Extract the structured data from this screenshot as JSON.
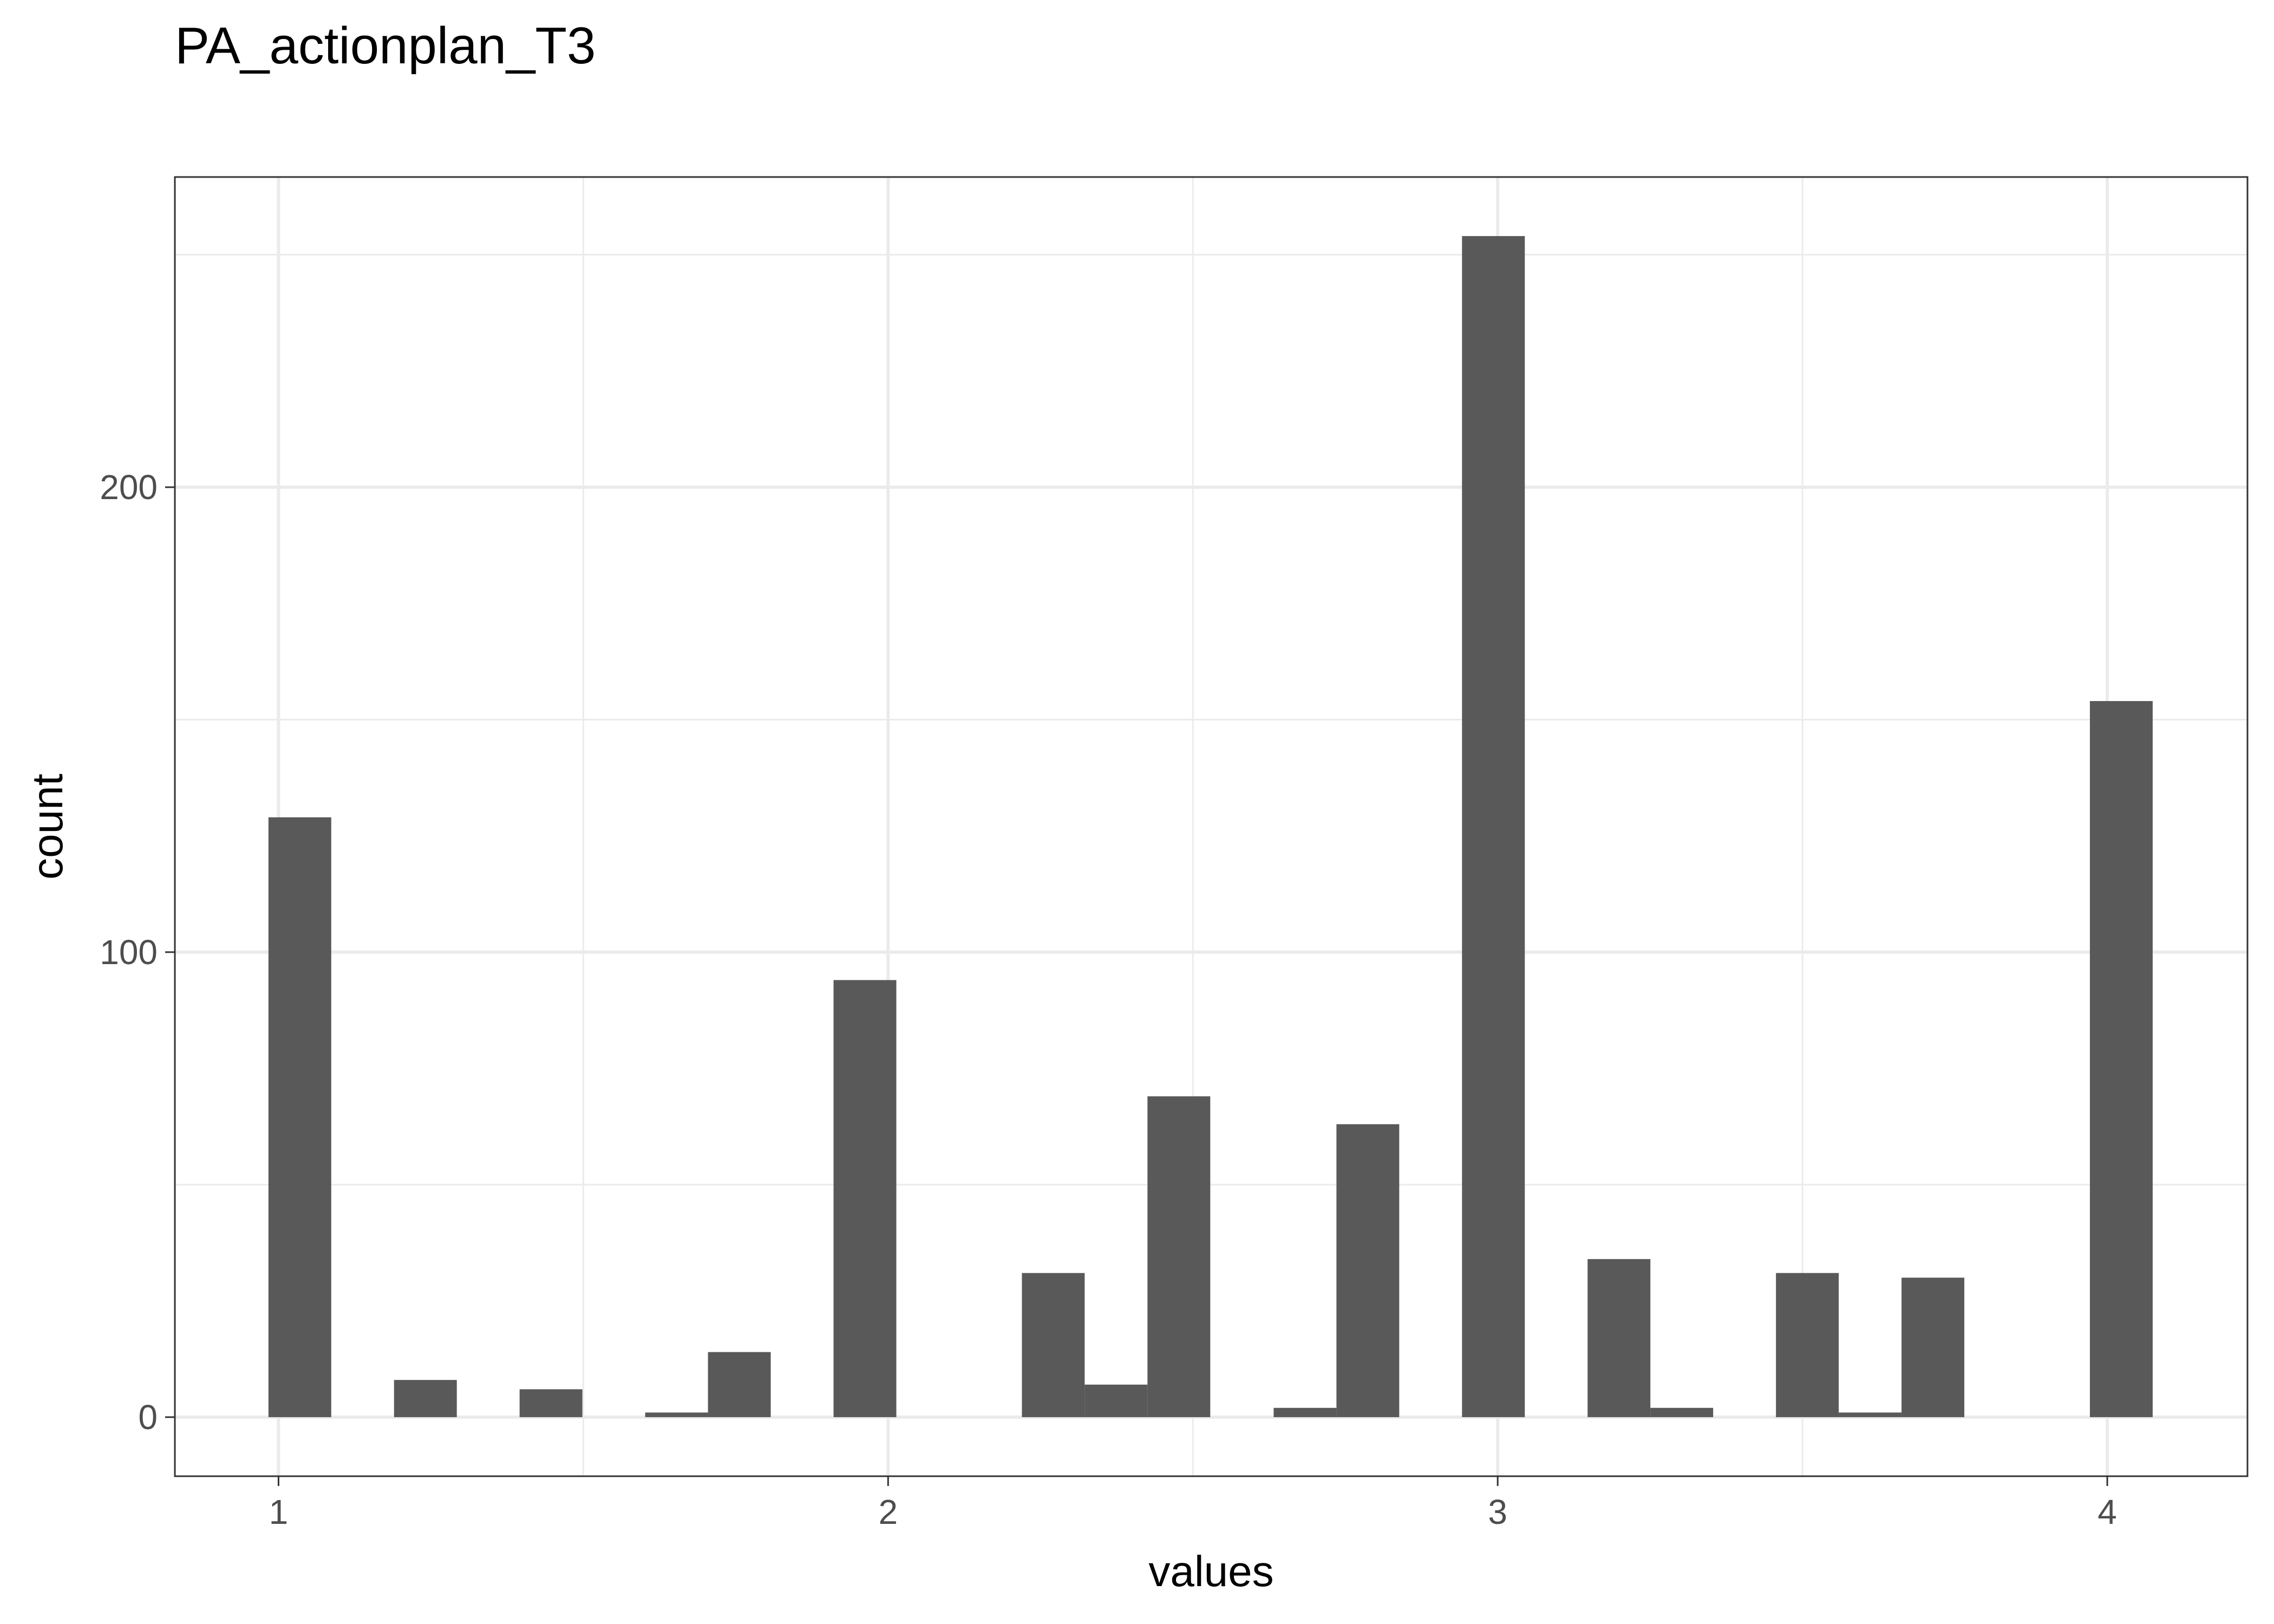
{
  "chart_data": {
    "type": "bar",
    "title": "PA_actionplan_T3",
    "xlabel": "values",
    "ylabel": "count",
    "xlim": [
      0.83,
      4.23
    ],
    "ylim": [
      -12.7,
      266.7
    ],
    "x_ticks": [
      1,
      2,
      3,
      4
    ],
    "y_ticks": [
      0,
      100,
      200
    ],
    "bin_width": 0.103,
    "bins": [
      {
        "x": 1.035,
        "count": 129
      },
      {
        "x": 1.241,
        "count": 8
      },
      {
        "x": 1.447,
        "count": 6
      },
      {
        "x": 1.653,
        "count": 1
      },
      {
        "x": 1.756,
        "count": 14
      },
      {
        "x": 1.962,
        "count": 94
      },
      {
        "x": 2.271,
        "count": 31
      },
      {
        "x": 2.374,
        "count": 7
      },
      {
        "x": 2.477,
        "count": 69
      },
      {
        "x": 2.684,
        "count": 2
      },
      {
        "x": 2.787,
        "count": 63
      },
      {
        "x": 2.993,
        "count": 254
      },
      {
        "x": 3.199,
        "count": 34
      },
      {
        "x": 3.302,
        "count": 2
      },
      {
        "x": 3.508,
        "count": 31
      },
      {
        "x": 3.611,
        "count": 1
      },
      {
        "x": 3.714,
        "count": 30
      },
      {
        "x": 4.023,
        "count": 154
      }
    ],
    "grid": true,
    "colors": {
      "bar": "#595959",
      "grid": "#ebebeb",
      "panel_border": "#333333",
      "background": "#ffffff"
    }
  }
}
